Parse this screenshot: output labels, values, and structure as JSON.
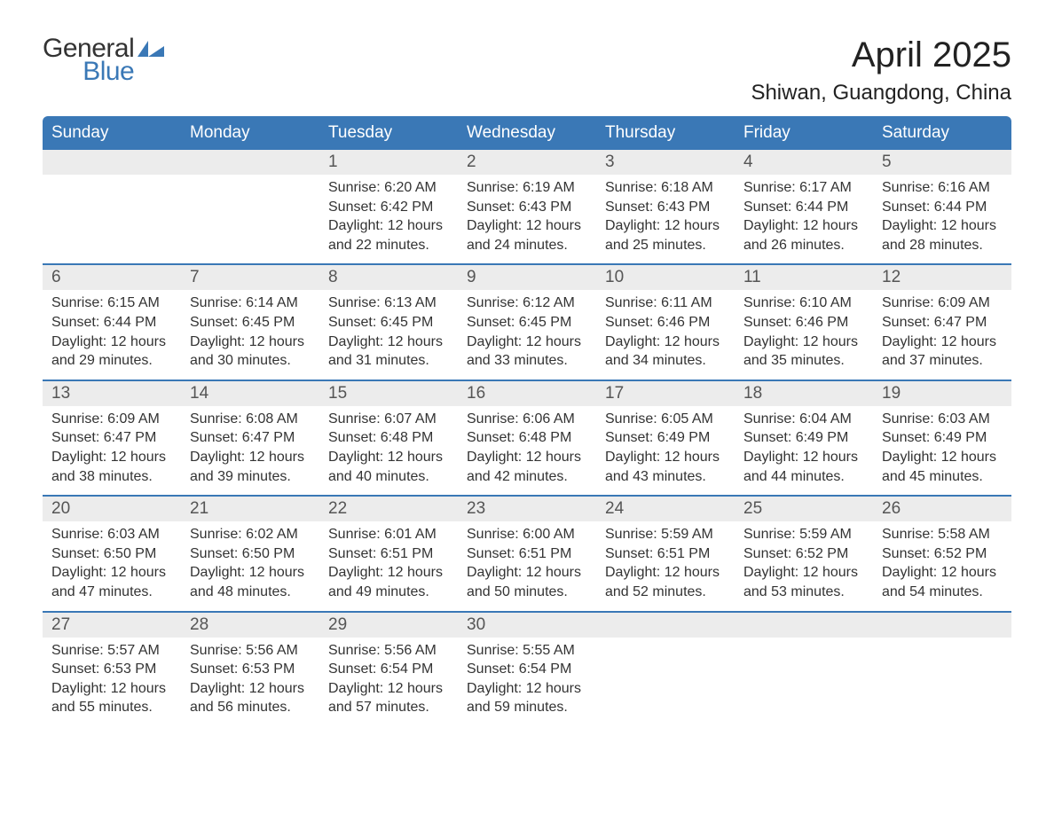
{
  "brand": {
    "line1": "General",
    "line2": "Blue",
    "color1": "#333333",
    "color2": "#3a78b6"
  },
  "title": "April 2025",
  "location": "Shiwan, Guangdong, China",
  "colors": {
    "header_bg": "#3a78b6",
    "header_text": "#ffffff",
    "daynum_bg": "#ececec",
    "daynum_text": "#555555",
    "body_text": "#333333",
    "week_border": "#3a78b6",
    "page_bg": "#ffffff"
  },
  "fonts": {
    "title_pt": 40,
    "location_pt": 24,
    "weekday_pt": 19,
    "daynum_pt": 19,
    "body_pt": 16
  },
  "weekdays": [
    "Sunday",
    "Monday",
    "Tuesday",
    "Wednesday",
    "Thursday",
    "Friday",
    "Saturday"
  ],
  "weeks": [
    [
      null,
      null,
      {
        "num": "1",
        "sunrise": "6:20 AM",
        "sunset": "6:42 PM",
        "daylight": "12 hours and 22 minutes."
      },
      {
        "num": "2",
        "sunrise": "6:19 AM",
        "sunset": "6:43 PM",
        "daylight": "12 hours and 24 minutes."
      },
      {
        "num": "3",
        "sunrise": "6:18 AM",
        "sunset": "6:43 PM",
        "daylight": "12 hours and 25 minutes."
      },
      {
        "num": "4",
        "sunrise": "6:17 AM",
        "sunset": "6:44 PM",
        "daylight": "12 hours and 26 minutes."
      },
      {
        "num": "5",
        "sunrise": "6:16 AM",
        "sunset": "6:44 PM",
        "daylight": "12 hours and 28 minutes."
      }
    ],
    [
      {
        "num": "6",
        "sunrise": "6:15 AM",
        "sunset": "6:44 PM",
        "daylight": "12 hours and 29 minutes."
      },
      {
        "num": "7",
        "sunrise": "6:14 AM",
        "sunset": "6:45 PM",
        "daylight": "12 hours and 30 minutes."
      },
      {
        "num": "8",
        "sunrise": "6:13 AM",
        "sunset": "6:45 PM",
        "daylight": "12 hours and 31 minutes."
      },
      {
        "num": "9",
        "sunrise": "6:12 AM",
        "sunset": "6:45 PM",
        "daylight": "12 hours and 33 minutes."
      },
      {
        "num": "10",
        "sunrise": "6:11 AM",
        "sunset": "6:46 PM",
        "daylight": "12 hours and 34 minutes."
      },
      {
        "num": "11",
        "sunrise": "6:10 AM",
        "sunset": "6:46 PM",
        "daylight": "12 hours and 35 minutes."
      },
      {
        "num": "12",
        "sunrise": "6:09 AM",
        "sunset": "6:47 PM",
        "daylight": "12 hours and 37 minutes."
      }
    ],
    [
      {
        "num": "13",
        "sunrise": "6:09 AM",
        "sunset": "6:47 PM",
        "daylight": "12 hours and 38 minutes."
      },
      {
        "num": "14",
        "sunrise": "6:08 AM",
        "sunset": "6:47 PM",
        "daylight": "12 hours and 39 minutes."
      },
      {
        "num": "15",
        "sunrise": "6:07 AM",
        "sunset": "6:48 PM",
        "daylight": "12 hours and 40 minutes."
      },
      {
        "num": "16",
        "sunrise": "6:06 AM",
        "sunset": "6:48 PM",
        "daylight": "12 hours and 42 minutes."
      },
      {
        "num": "17",
        "sunrise": "6:05 AM",
        "sunset": "6:49 PM",
        "daylight": "12 hours and 43 minutes."
      },
      {
        "num": "18",
        "sunrise": "6:04 AM",
        "sunset": "6:49 PM",
        "daylight": "12 hours and 44 minutes."
      },
      {
        "num": "19",
        "sunrise": "6:03 AM",
        "sunset": "6:49 PM",
        "daylight": "12 hours and 45 minutes."
      }
    ],
    [
      {
        "num": "20",
        "sunrise": "6:03 AM",
        "sunset": "6:50 PM",
        "daylight": "12 hours and 47 minutes."
      },
      {
        "num": "21",
        "sunrise": "6:02 AM",
        "sunset": "6:50 PM",
        "daylight": "12 hours and 48 minutes."
      },
      {
        "num": "22",
        "sunrise": "6:01 AM",
        "sunset": "6:51 PM",
        "daylight": "12 hours and 49 minutes."
      },
      {
        "num": "23",
        "sunrise": "6:00 AM",
        "sunset": "6:51 PM",
        "daylight": "12 hours and 50 minutes."
      },
      {
        "num": "24",
        "sunrise": "5:59 AM",
        "sunset": "6:51 PM",
        "daylight": "12 hours and 52 minutes."
      },
      {
        "num": "25",
        "sunrise": "5:59 AM",
        "sunset": "6:52 PM",
        "daylight": "12 hours and 53 minutes."
      },
      {
        "num": "26",
        "sunrise": "5:58 AM",
        "sunset": "6:52 PM",
        "daylight": "12 hours and 54 minutes."
      }
    ],
    [
      {
        "num": "27",
        "sunrise": "5:57 AM",
        "sunset": "6:53 PM",
        "daylight": "12 hours and 55 minutes."
      },
      {
        "num": "28",
        "sunrise": "5:56 AM",
        "sunset": "6:53 PM",
        "daylight": "12 hours and 56 minutes."
      },
      {
        "num": "29",
        "sunrise": "5:56 AM",
        "sunset": "6:54 PM",
        "daylight": "12 hours and 57 minutes."
      },
      {
        "num": "30",
        "sunrise": "5:55 AM",
        "sunset": "6:54 PM",
        "daylight": "12 hours and 59 minutes."
      },
      null,
      null,
      null
    ]
  ],
  "labels": {
    "sunrise": "Sunrise: ",
    "sunset": "Sunset: ",
    "daylight": "Daylight: "
  }
}
